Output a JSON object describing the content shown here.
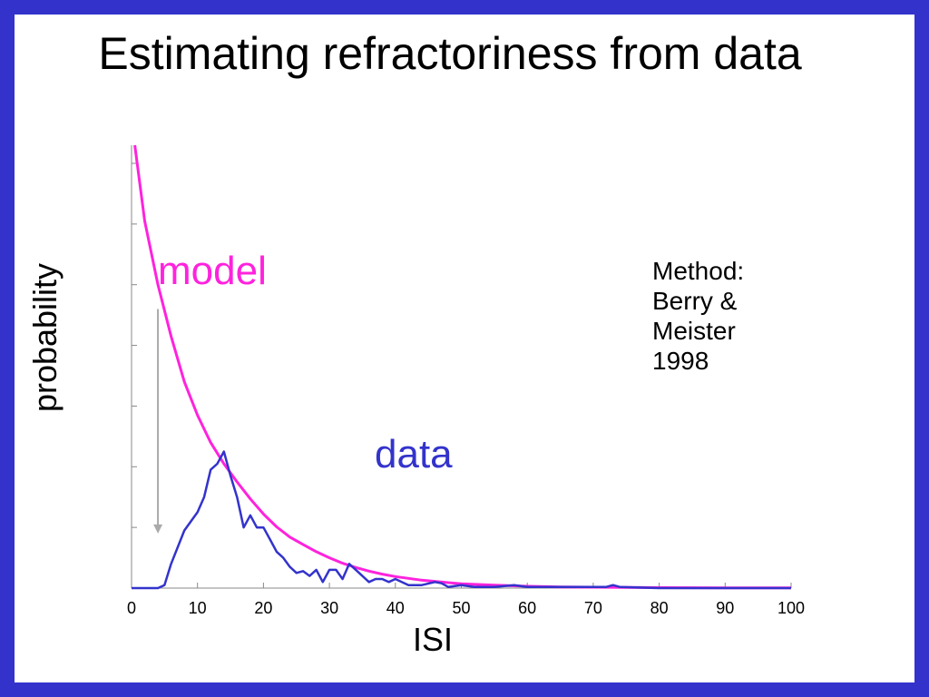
{
  "slide": {
    "title": "Estimating refractoriness from data",
    "method_lines": [
      "Method:",
      "Berry &",
      "Meister",
      "1998"
    ]
  },
  "colors": {
    "border": "#3333cc",
    "model": "#ff22dd",
    "data": "#3333cc",
    "arrow": "#aaaaaa"
  },
  "chart_data": {
    "type": "line",
    "title": "",
    "xlabel": "ISI",
    "ylabel": "probability",
    "xlim": [
      0,
      100
    ],
    "ylim": [
      0,
      7.3
    ],
    "xticks": [
      0,
      10,
      20,
      30,
      40,
      50,
      60,
      70,
      80,
      90,
      100
    ],
    "y_tick_count": 7,
    "y_tick_labels_shown": false,
    "grid": false,
    "annotations": [
      {
        "text": "model",
        "refers_to": "model"
      },
      {
        "text": "data",
        "refers_to": "data"
      }
    ],
    "arrow": {
      "x": 4,
      "from_y": 4.6,
      "to_y": 0.9,
      "direction": "down"
    },
    "series": [
      {
        "name": "model",
        "color": "#ff22dd",
        "x": [
          0.5,
          2,
          4,
          6,
          8,
          10,
          12,
          14,
          16,
          18,
          20,
          22,
          24,
          26,
          28,
          30,
          32,
          34,
          36,
          38,
          40,
          42,
          44,
          46,
          48,
          50,
          55,
          60,
          65,
          70,
          75,
          80,
          85,
          90,
          95,
          100
        ],
        "y": [
          7.3,
          6.05,
          5.0,
          4.15,
          3.4,
          2.85,
          2.4,
          2.05,
          1.75,
          1.47,
          1.22,
          1.01,
          0.84,
          0.72,
          0.6,
          0.5,
          0.41,
          0.34,
          0.28,
          0.23,
          0.19,
          0.16,
          0.13,
          0.11,
          0.09,
          0.07,
          0.05,
          0.03,
          0.02,
          0.015,
          0.01,
          0.008,
          0.006,
          0.005,
          0.004,
          0.003
        ]
      },
      {
        "name": "data",
        "color": "#3333cc",
        "x": [
          0,
          4,
          5,
          6,
          8,
          10,
          11,
          12,
          13,
          14,
          15,
          16,
          17,
          18,
          19,
          20,
          21,
          22,
          23,
          24,
          25,
          26,
          27,
          28,
          29,
          30,
          31,
          32,
          33,
          34,
          35,
          36,
          37,
          38,
          39,
          40,
          42,
          44,
          46,
          47,
          48,
          50,
          52,
          55,
          58,
          60,
          65,
          70,
          72,
          73,
          74,
          80,
          90,
          100
        ],
        "y": [
          0,
          0,
          0.05,
          0.4,
          0.95,
          1.25,
          1.5,
          1.95,
          2.05,
          2.25,
          1.85,
          1.5,
          1.0,
          1.2,
          1.0,
          1.0,
          0.8,
          0.6,
          0.5,
          0.35,
          0.25,
          0.28,
          0.2,
          0.3,
          0.1,
          0.3,
          0.3,
          0.15,
          0.4,
          0.3,
          0.2,
          0.1,
          0.15,
          0.15,
          0.1,
          0.15,
          0.05,
          0.05,
          0.1,
          0.08,
          0.02,
          0.05,
          0.02,
          0.02,
          0.05,
          0.02,
          0.02,
          0.02,
          0.02,
          0.05,
          0.02,
          0.0,
          0.0,
          0.0
        ]
      }
    ]
  }
}
